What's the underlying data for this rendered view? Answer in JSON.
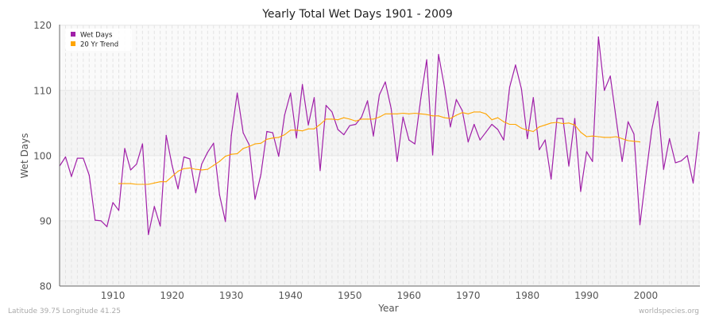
{
  "chart_data": {
    "type": "line",
    "title": "Yearly Total Wet Days 1901 - 2009",
    "xlabel": "Year",
    "ylabel": "Wet Days",
    "xlim": [
      1901,
      2009
    ],
    "ylim": [
      80,
      120
    ],
    "xticks": [
      1910,
      1920,
      1930,
      1940,
      1950,
      1960,
      1970,
      1980,
      1990,
      2000
    ],
    "yticks": [
      80,
      90,
      100,
      110,
      120
    ],
    "grid": true,
    "legend_position": "top-left",
    "series": [
      {
        "name": "Wet Days",
        "color": "#a020a8",
        "x_start": 1901,
        "values": [
          98.4,
          99.8,
          96.8,
          99.6,
          99.6,
          97.0,
          90.1,
          90.0,
          89.1,
          92.8,
          91.6,
          101.1,
          97.8,
          98.7,
          101.8,
          87.9,
          92.2,
          89.2,
          103.1,
          98.5,
          94.9,
          99.8,
          99.5,
          94.3,
          98.7,
          100.5,
          101.9,
          94.0,
          89.9,
          103.1,
          109.6,
          103.5,
          101.7,
          93.3,
          97.1,
          103.7,
          103.5,
          99.9,
          106.2,
          109.6,
          102.7,
          110.9,
          104.7,
          108.9,
          97.7,
          107.7,
          106.7,
          104.0,
          103.2,
          104.6,
          104.8,
          105.9,
          108.4,
          103.0,
          109.3,
          111.3,
          107.2,
          99.1,
          105.9,
          102.4,
          101.8,
          108.8,
          114.7,
          100.1,
          115.5,
          110.5,
          104.4,
          108.6,
          106.9,
          102.1,
          104.8,
          102.4,
          103.6,
          104.8,
          104.0,
          102.4,
          110.5,
          113.9,
          110.2,
          102.6,
          108.9,
          100.9,
          102.4,
          96.4,
          105.7,
          105.7,
          98.4,
          105.7,
          94.5,
          100.6,
          99.1,
          118.2,
          110.0,
          112.2,
          105.6,
          99.1,
          105.2,
          103.3,
          89.4,
          96.8,
          104.0,
          108.3,
          97.9,
          102.6,
          98.9,
          99.2,
          100.0,
          95.8,
          103.6
        ]
      },
      {
        "name": "20 Yr Trend",
        "color": "#ffa500",
        "x_start": 1911,
        "values": [
          95.7,
          95.7,
          95.7,
          95.6,
          95.6,
          95.6,
          95.8,
          96.0,
          96.0,
          96.8,
          97.6,
          98.0,
          98.1,
          97.9,
          97.8,
          97.9,
          98.5,
          99.1,
          99.9,
          100.2,
          100.3,
          101.1,
          101.4,
          101.8,
          101.9,
          102.5,
          102.7,
          102.8,
          103.2,
          103.9,
          103.9,
          103.8,
          104.1,
          104.1,
          104.8,
          105.6,
          105.6,
          105.5,
          105.8,
          105.6,
          105.3,
          105.6,
          105.6,
          105.6,
          105.9,
          106.4,
          106.4,
          106.4,
          106.5,
          106.4,
          106.5,
          106.4,
          106.3,
          106.1,
          106.1,
          105.8,
          105.7,
          106.2,
          106.6,
          106.4,
          106.7,
          106.7,
          106.4,
          105.5,
          105.8,
          105.2,
          104.8,
          104.8,
          104.2,
          103.9,
          103.7,
          104.4,
          104.7,
          105.0,
          105.1,
          104.9,
          105.0,
          104.7,
          103.6,
          102.9,
          103.0,
          102.9,
          102.8,
          102.8,
          102.9,
          102.6,
          102.3,
          102.2,
          102.1
        ]
      }
    ]
  },
  "footer": {
    "location": "Latitude 39.75 Longitude 41.25",
    "source": "worldspecies.org"
  }
}
